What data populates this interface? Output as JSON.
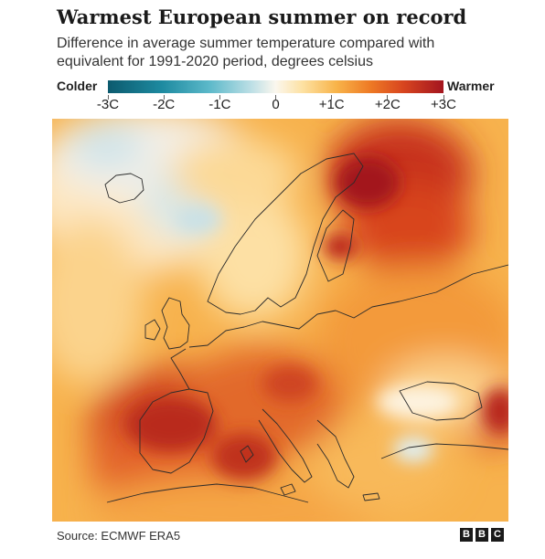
{
  "title": "Warmest European summer on record",
  "subtitle": "Difference in average summer temperature compared with equivalent for 1991-2020 period, degrees celsius",
  "legend": {
    "cold_label": "Colder",
    "warm_label": "Warmer",
    "ticks": [
      "-3C",
      "-2C",
      "-1C",
      "0",
      "+1C",
      "+2C",
      "+3C"
    ],
    "range": [
      -3,
      3
    ]
  },
  "source": "Source: ECMWF ERA5",
  "logo": [
    "B",
    "B",
    "C"
  ],
  "colors": {
    "coldest": "#0c5a6e",
    "neutral": "#fbf7ee",
    "warmest": "#a3151f"
  }
}
